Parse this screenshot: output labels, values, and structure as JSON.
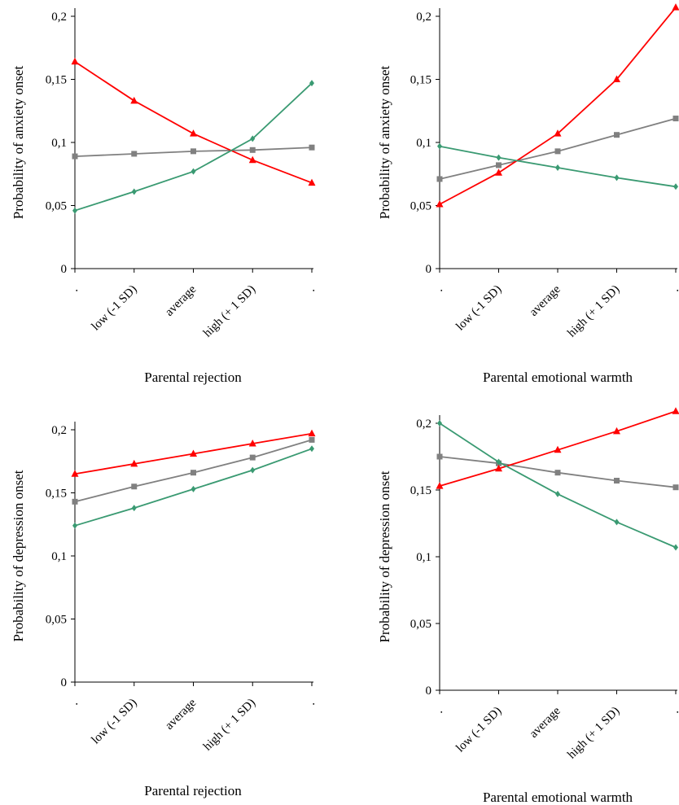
{
  "chart_data": [
    {
      "type": "line",
      "xlabel": "Parental rejection",
      "ylabel": "Probability of anxiety onset",
      "categories": [
        ".",
        "low (-1 SD)",
        "average",
        "high (+ 1 SD)",
        "."
      ],
      "ylim": [
        0,
        0.2
      ],
      "yticks": [
        "0",
        "0,05",
        "0,1",
        "0,15",
        "0,2"
      ],
      "series": [
        {
          "color": "#808080",
          "marker": "square",
          "values": [
            0.089,
            0.091,
            0.093,
            0.094,
            0.096
          ]
        },
        {
          "color": "#ff0000",
          "marker": "triangle",
          "values": [
            0.164,
            0.133,
            0.107,
            0.086,
            0.068
          ]
        },
        {
          "color": "#3a9a72",
          "marker": "diamond",
          "values": [
            0.046,
            0.061,
            0.077,
            0.103,
            0.147
          ]
        }
      ]
    },
    {
      "type": "line",
      "xlabel": "Parental emotional warmth",
      "ylabel": "Probability of anxiety onset",
      "categories": [
        ".",
        "low (-1 SD)",
        "average",
        "high (+ 1 SD)",
        "."
      ],
      "ylim": [
        0,
        0.2
      ],
      "yticks": [
        "0",
        "0,05",
        "0,1",
        "0,15",
        "0,2"
      ],
      "series": [
        {
          "color": "#808080",
          "marker": "square",
          "values": [
            0.071,
            0.082,
            0.093,
            0.106,
            0.119
          ]
        },
        {
          "color": "#ff0000",
          "marker": "triangle",
          "values": [
            0.051,
            0.076,
            0.107,
            0.15,
            0.207
          ]
        },
        {
          "color": "#3a9a72",
          "marker": "diamond",
          "values": [
            0.097,
            0.088,
            0.08,
            0.072,
            0.065
          ]
        }
      ]
    },
    {
      "type": "line",
      "xlabel": "Parental rejection",
      "ylabel": "Probability of depression onset",
      "categories": [
        ".",
        "low (-1 SD)",
        "average",
        "high (+ 1 SD)",
        "."
      ],
      "ylim": [
        0,
        0.2
      ],
      "yticks": [
        "0",
        "0,05",
        "0,1",
        "0,15",
        "0,2"
      ],
      "series": [
        {
          "color": "#808080",
          "marker": "square",
          "values": [
            0.143,
            0.155,
            0.166,
            0.178,
            0.192
          ]
        },
        {
          "color": "#ff0000",
          "marker": "triangle",
          "values": [
            0.165,
            0.173,
            0.181,
            0.189,
            0.197
          ]
        },
        {
          "color": "#3a9a72",
          "marker": "diamond",
          "values": [
            0.124,
            0.138,
            0.153,
            0.168,
            0.185
          ]
        }
      ]
    },
    {
      "type": "line",
      "xlabel": "Parental emotional warmth",
      "ylabel": "Probability of depression onset",
      "categories": [
        ".",
        "low (-1 SD)",
        "average",
        "high (+ 1 SD)",
        "."
      ],
      "ylim": [
        0,
        0.2
      ],
      "yticks": [
        "0",
        "0,05",
        "0,1",
        "0,15",
        "0,2"
      ],
      "series": [
        {
          "color": "#808080",
          "marker": "square",
          "values": [
            0.175,
            0.17,
            0.163,
            0.157,
            0.152
          ]
        },
        {
          "color": "#ff0000",
          "marker": "triangle",
          "values": [
            0.153,
            0.166,
            0.18,
            0.194,
            0.209
          ]
        },
        {
          "color": "#3a9a72",
          "marker": "diamond",
          "values": [
            0.2,
            0.171,
            0.147,
            0.126,
            0.107
          ]
        }
      ]
    }
  ]
}
